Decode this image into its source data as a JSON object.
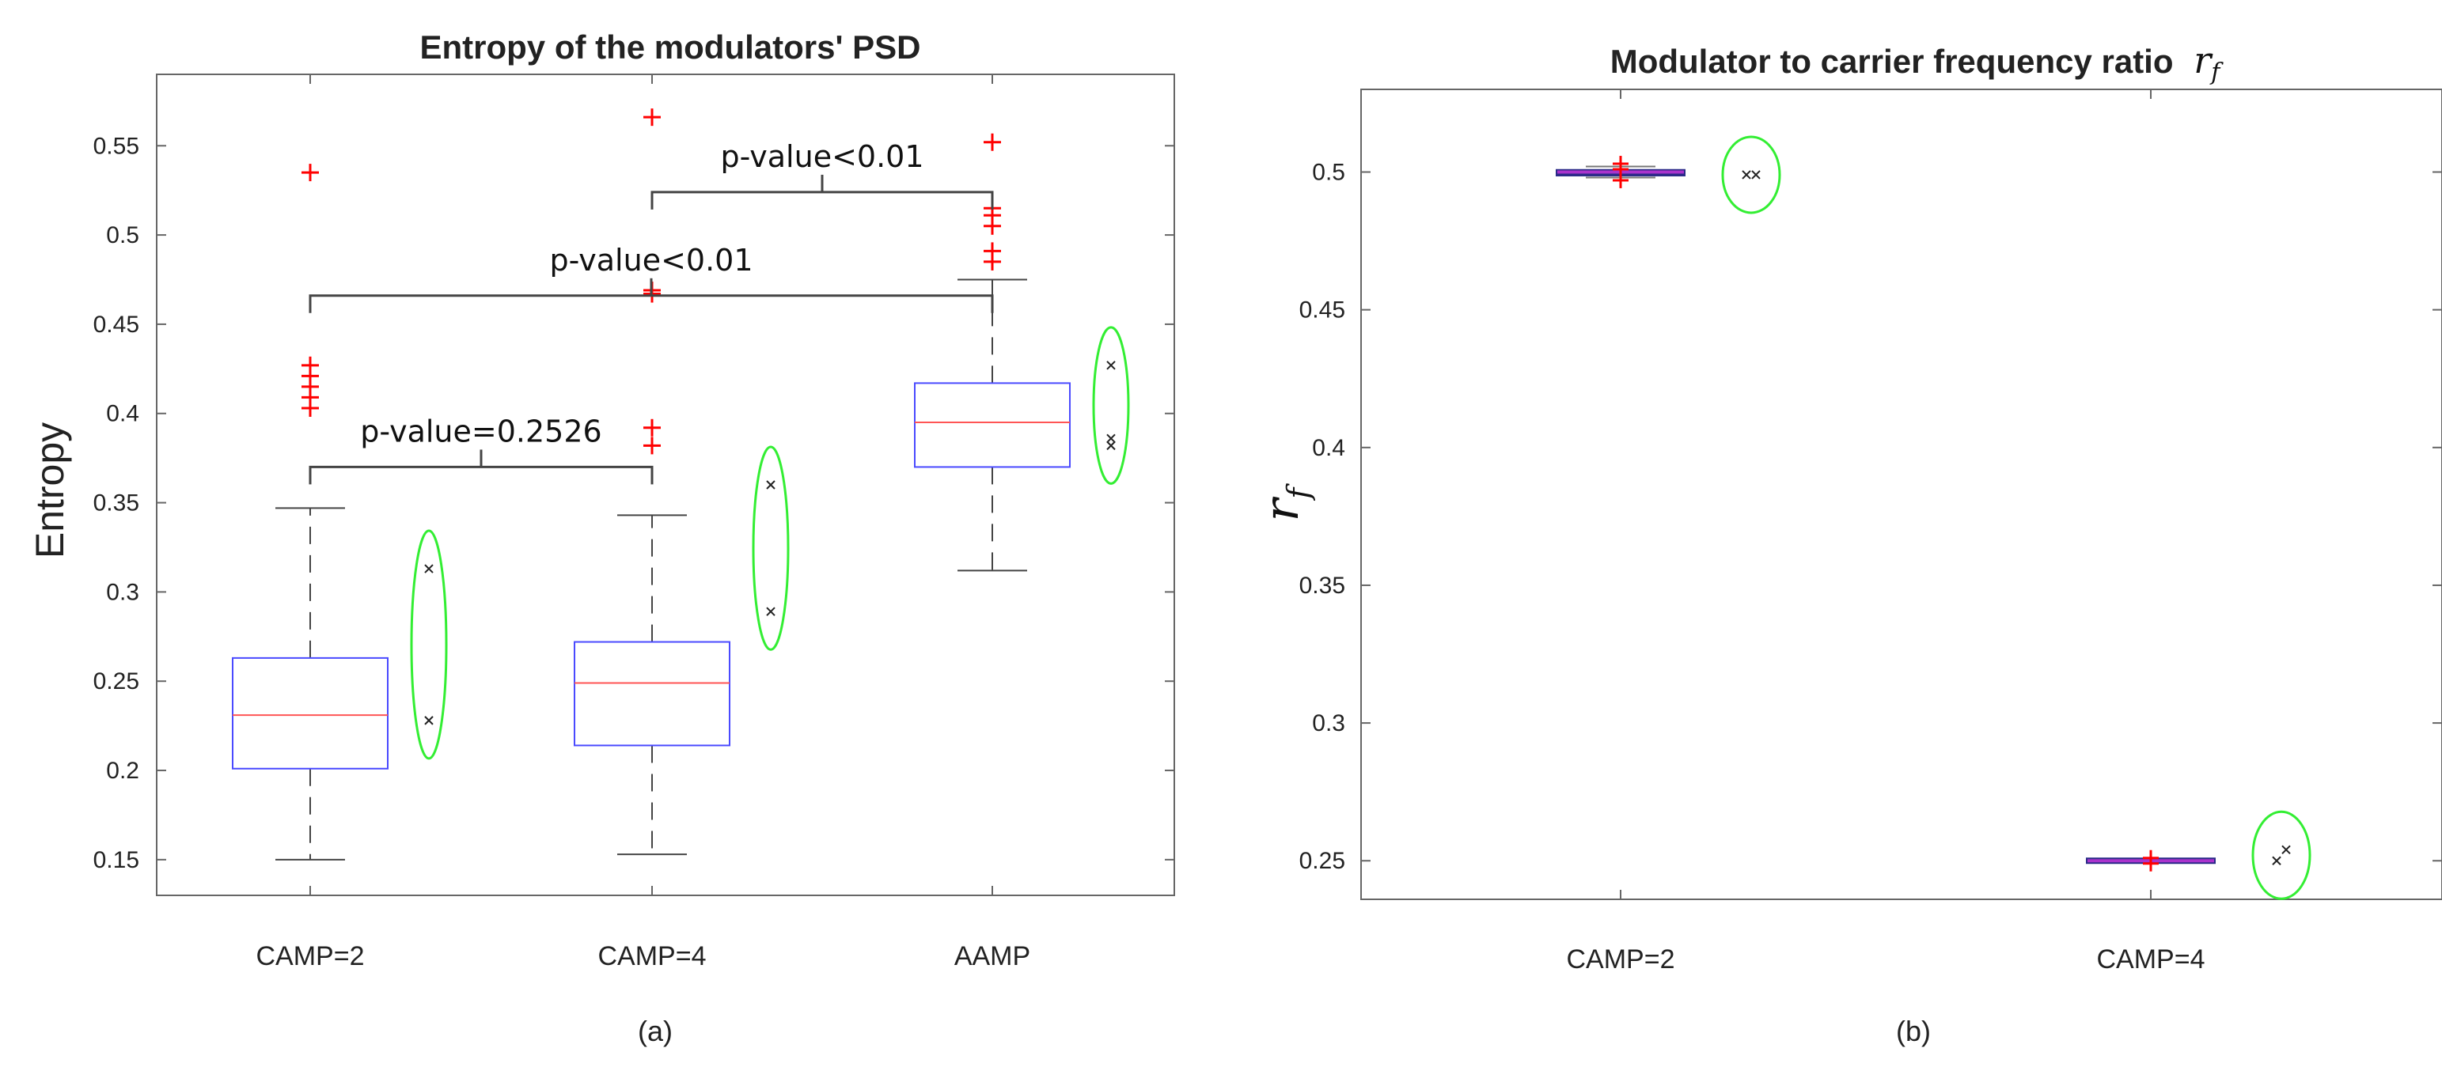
{
  "chart_data": [
    {
      "type": "box",
      "title": "Entropy of the modulators' PSD",
      "xlabel": "",
      "ylabel": "Entropy",
      "caption": "(a)",
      "ylim": [
        0.13,
        0.59
      ],
      "yticks": [
        0.15,
        0.2,
        0.25,
        0.3,
        0.35,
        0.4,
        0.45,
        0.5,
        0.55
      ],
      "ytick_labels": [
        "0.15",
        "0.2",
        "0.25",
        "0.3",
        "0.35",
        "0.4",
        "0.45",
        "0.5",
        "0.55"
      ],
      "categories": [
        "CAMP=2",
        "CAMP=4",
        "AAMP"
      ],
      "colors": {
        "box": "#4a4aff",
        "median": "#ff5555",
        "whisker": "#444444",
        "outlier": "#ff0000",
        "ellipse": "#33ee33",
        "bracket": "#444444"
      },
      "boxes": [
        {
          "whisker_low": 0.15,
          "q1": 0.201,
          "median": 0.231,
          "q3": 0.263,
          "whisker_high": 0.347,
          "outliers": [
            0.403,
            0.409,
            0.415,
            0.421,
            0.427,
            0.535
          ],
          "marked_points": [
            0.228,
            0.313
          ]
        },
        {
          "whisker_low": 0.153,
          "q1": 0.214,
          "median": 0.249,
          "q3": 0.272,
          "whisker_high": 0.343,
          "outliers": [
            0.382,
            0.392,
            0.467,
            0.469,
            0.566
          ],
          "marked_points": [
            0.289,
            0.36
          ]
        },
        {
          "whisker_low": 0.312,
          "q1": 0.37,
          "median": 0.395,
          "q3": 0.417,
          "whisker_high": 0.475,
          "outliers": [
            0.485,
            0.491,
            0.505,
            0.511,
            0.515,
            0.552
          ],
          "marked_points": [
            0.382,
            0.386,
            0.427
          ]
        }
      ],
      "comparisons": [
        {
          "from": 0,
          "to": 1,
          "label": "p-value=0.2526",
          "level": 0.37
        },
        {
          "from": 0,
          "to": 2,
          "label": "p-value<0.01",
          "level": 0.466
        },
        {
          "from": 1,
          "to": 2,
          "label": "p-value<0.01",
          "level": 0.524
        }
      ]
    },
    {
      "type": "box",
      "title": "Modulator to carrier frequency ratio",
      "title_symbol": "r",
      "title_symbol_sub": "f",
      "xlabel": "",
      "ylabel_symbol": "r",
      "ylabel_symbol_sub": "f",
      "caption": "(b)",
      "ylim": [
        0.236,
        0.53
      ],
      "yticks": [
        0.25,
        0.3,
        0.35,
        0.4,
        0.45,
        0.5
      ],
      "ytick_labels": [
        "0.25",
        "0.3",
        "0.35",
        "0.4",
        "0.45",
        "0.5"
      ],
      "categories": [
        "CAMP=2",
        "CAMP=4"
      ],
      "colors": {
        "box": "#2a2a88",
        "median": "#aa33cc",
        "whisker": "#777777",
        "outlier": "#ff0000",
        "ellipse": "#33ee33"
      },
      "boxes": [
        {
          "whisker_low": 0.498,
          "q1": 0.499,
          "median": 0.5,
          "q3": 0.5005,
          "whisker_high": 0.502,
          "outliers": [
            0.497,
            0.501,
            0.503
          ],
          "marked_points": [
            0.499,
            0.499
          ]
        },
        {
          "whisker_low": 0.2495,
          "q1": 0.2498,
          "median": 0.25,
          "q3": 0.2502,
          "whisker_high": 0.2505,
          "outliers": [
            0.249,
            0.251
          ],
          "marked_points": [
            0.25,
            0.254
          ]
        }
      ]
    }
  ]
}
